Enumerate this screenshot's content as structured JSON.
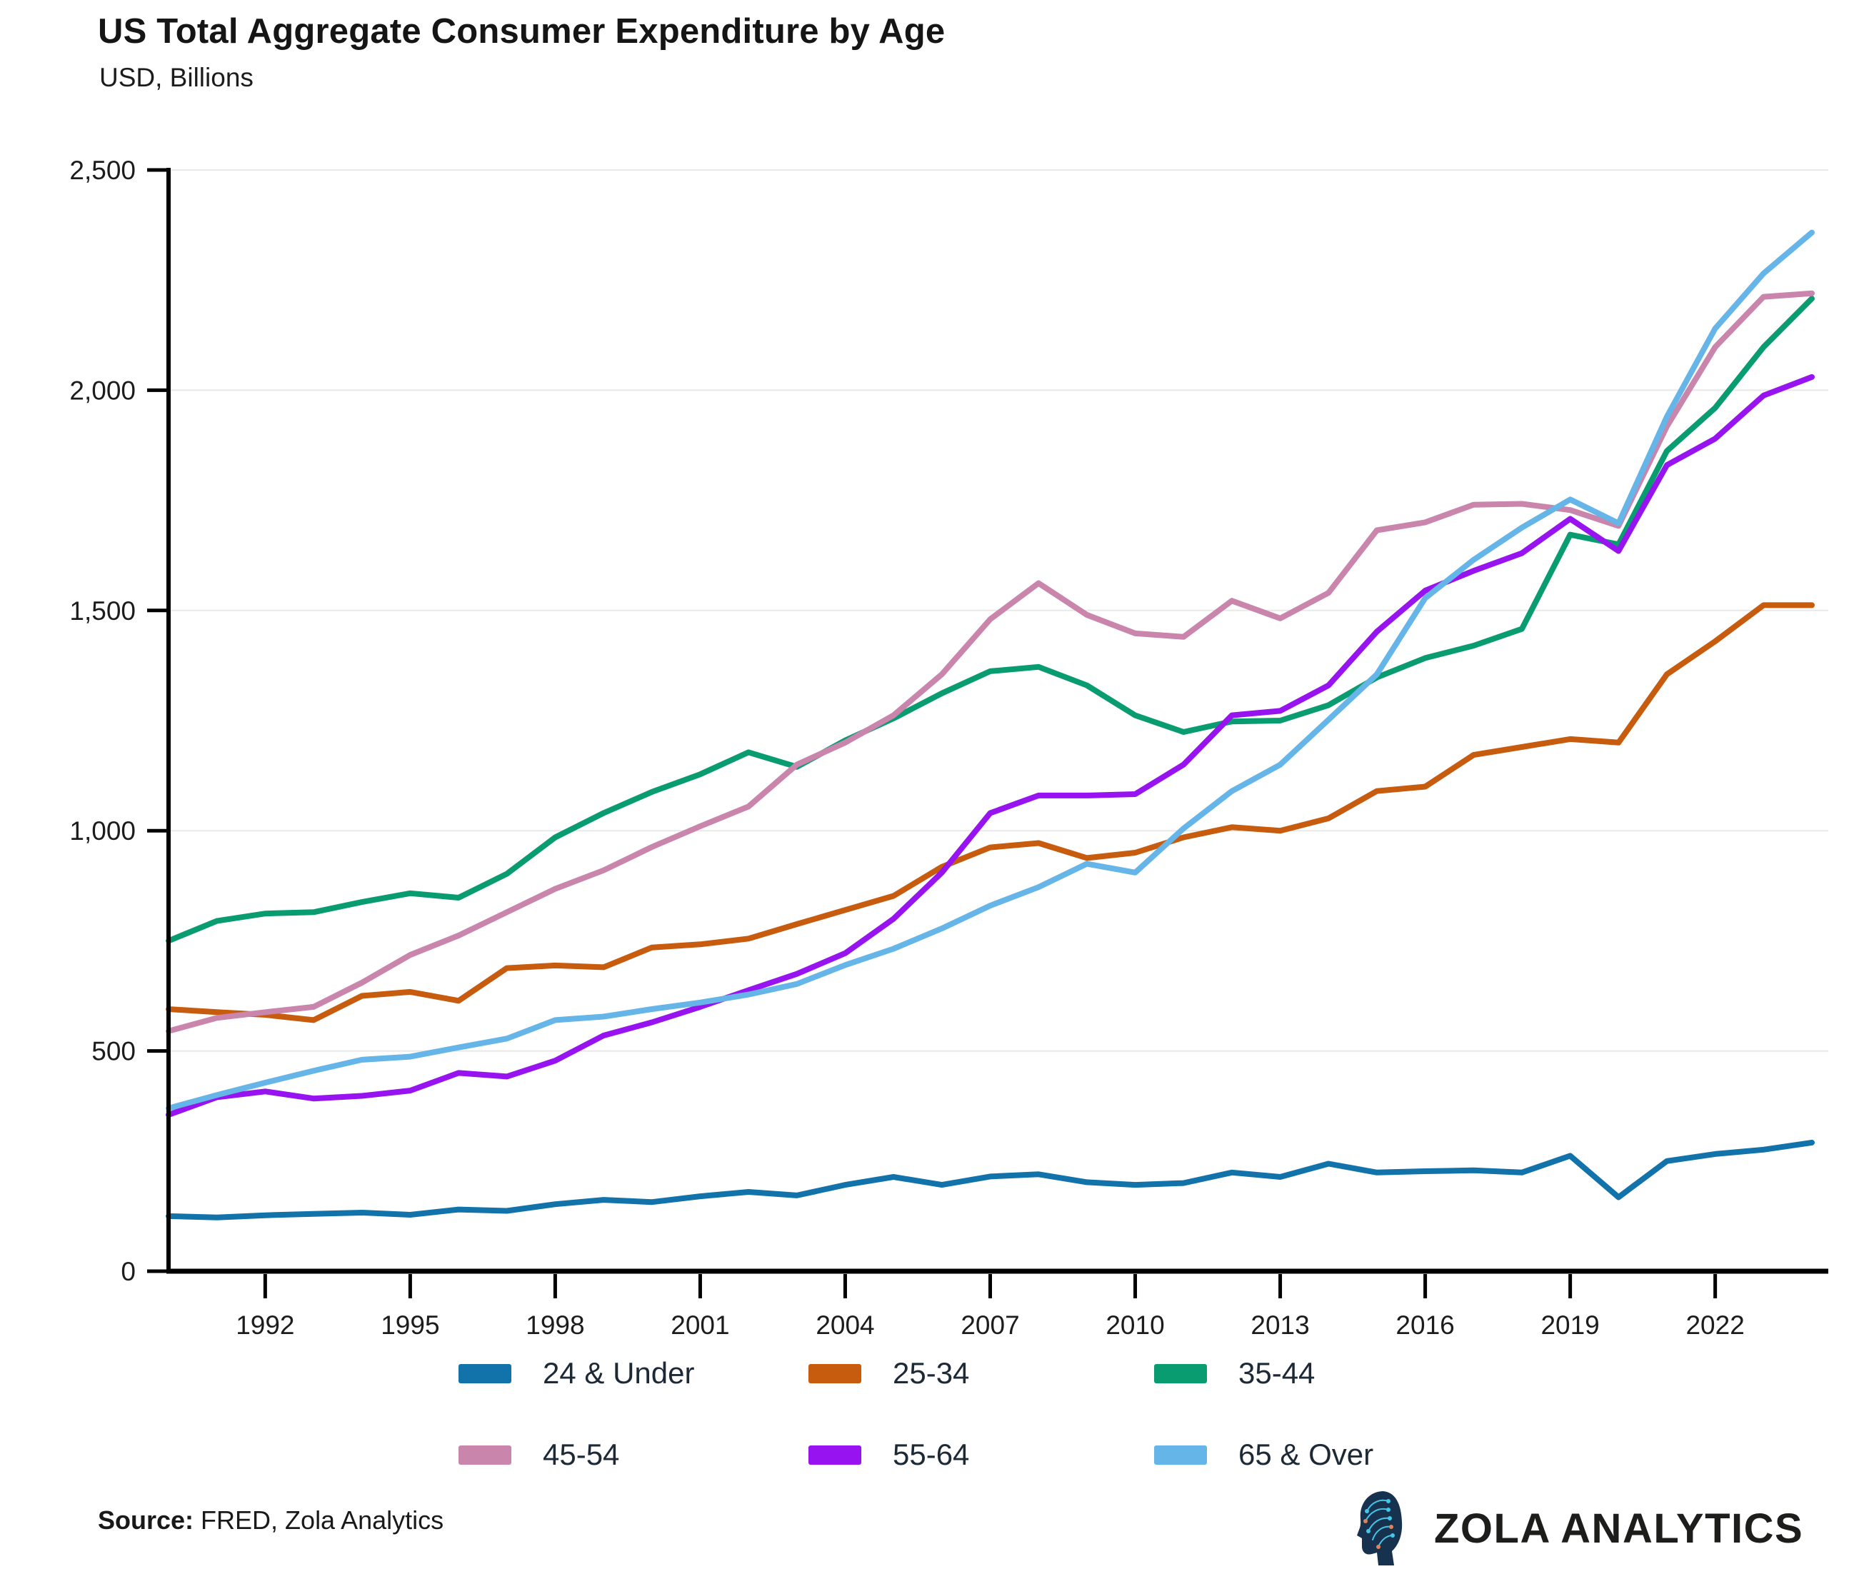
{
  "title": "US Total Aggregate Consumer Expenditure by Age",
  "subtitle": "USD, Billions",
  "source": {
    "label": "Source:",
    "text": " FRED, Zola Analytics"
  },
  "branding": {
    "name": "ZOLA ANALYTICS",
    "icon": "head-circuit-icon",
    "icon_colors": {
      "head": "#16324e",
      "circuit": "#43c7e8",
      "accent": "#e0835c"
    }
  },
  "style_colors": {
    "text": "#1c1c1c",
    "legend_text": "#1e2936",
    "axis": "#000000",
    "gridline": "#e8e8e8"
  },
  "chart_data": {
    "type": "line",
    "title": "US Total Aggregate Consumer Expenditure by Age",
    "subtitle": "USD, Billions",
    "xlabel": "",
    "ylabel": "USD, Billions",
    "x": [
      1990,
      1991,
      1992,
      1993,
      1994,
      1995,
      1996,
      1997,
      1998,
      1999,
      2000,
      2001,
      2002,
      2003,
      2004,
      2005,
      2006,
      2007,
      2008,
      2009,
      2010,
      2011,
      2012,
      2013,
      2014,
      2015,
      2016,
      2017,
      2018,
      2019,
      2020,
      2021,
      2022,
      2023,
      2024
    ],
    "x_ticks": [
      1992,
      1995,
      1998,
      2001,
      2004,
      2007,
      2010,
      2013,
      2016,
      2019,
      2022
    ],
    "ylim": [
      0,
      2500
    ],
    "y_ticks": [
      0,
      500,
      1000,
      1500,
      2000,
      2500
    ],
    "y_tick_labels": [
      "0",
      "500",
      "1,000",
      "1,500",
      "2,000",
      "2,500"
    ],
    "grid": "horizontal",
    "legend_position": "bottom",
    "series": [
      {
        "name": "24 & Under",
        "color": "#1272aa",
        "values": [
          125,
          122,
          127,
          130,
          133,
          128,
          140,
          137,
          152,
          162,
          157,
          170,
          180,
          172,
          196,
          214,
          196,
          215,
          220,
          202,
          196,
          200,
          224,
          214,
          244,
          224,
          227,
          229,
          224,
          262,
          168,
          250,
          266,
          276,
          292
        ]
      },
      {
        "name": "25-34",
        "color": "#c75b0e",
        "values": [
          595,
          588,
          582,
          570,
          625,
          634,
          614,
          688,
          694,
          690,
          735,
          742,
          755,
          788,
          820,
          852,
          918,
          962,
          972,
          938,
          950,
          985,
          1008,
          1000,
          1028,
          1090,
          1100,
          1172,
          1190,
          1208,
          1200,
          1355,
          1430,
          1512,
          1512
        ]
      },
      {
        "name": "35-44",
        "color": "#0a9c71",
        "values": [
          750,
          795,
          812,
          815,
          838,
          858,
          848,
          902,
          985,
          1040,
          1088,
          1128,
          1178,
          1145,
          1205,
          1255,
          1312,
          1362,
          1372,
          1330,
          1262,
          1224,
          1248,
          1250,
          1285,
          1348,
          1392,
          1420,
          1458,
          1672,
          1650,
          1862,
          1960,
          2098,
          2208
        ]
      },
      {
        "name": "45-54",
        "color": "#c985ac",
        "values": [
          545,
          575,
          588,
          600,
          655,
          718,
          762,
          815,
          868,
          910,
          963,
          1010,
          1055,
          1150,
          1200,
          1262,
          1355,
          1480,
          1562,
          1490,
          1448,
          1440,
          1522,
          1482,
          1540,
          1682,
          1700,
          1740,
          1742,
          1728,
          1692,
          1918,
          2098,
          2212,
          2220
        ]
      },
      {
        "name": "55-64",
        "color": "#9714f0",
        "values": [
          355,
          395,
          408,
          392,
          398,
          410,
          450,
          442,
          478,
          535,
          565,
          600,
          638,
          675,
          722,
          800,
          905,
          1040,
          1080,
          1080,
          1083,
          1150,
          1262,
          1272,
          1330,
          1452,
          1545,
          1590,
          1630,
          1708,
          1635,
          1830,
          1890,
          1988,
          2030
        ]
      },
      {
        "name": "65 & Over",
        "color": "#66b5e8",
        "values": [
          370,
          400,
          428,
          455,
          480,
          487,
          508,
          528,
          570,
          578,
          595,
          610,
          628,
          652,
          695,
          732,
          778,
          830,
          872,
          925,
          905,
          1005,
          1090,
          1150,
          1252,
          1355,
          1528,
          1615,
          1688,
          1752,
          1698,
          1940,
          2140,
          2265,
          2358
        ]
      }
    ]
  }
}
